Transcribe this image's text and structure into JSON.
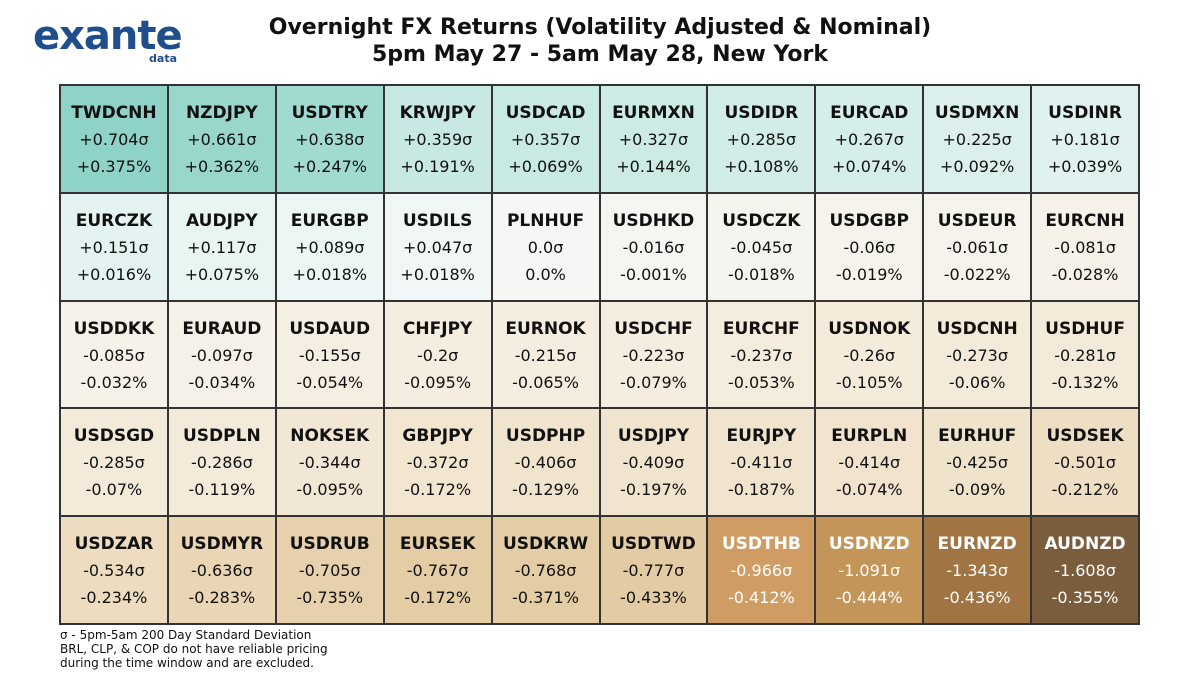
{
  "logo": {
    "word": "exante",
    "sub": "data"
  },
  "title": "Overnight FX Returns (Volatility Adjusted & Nominal)",
  "subtitle": "5pm May 27 - 5am May 28, New York",
  "chart_data": {
    "type": "table",
    "title": "Overnight FX Returns (Volatility Adjusted & Nominal)",
    "subtitle": "5pm May 27 - 5am May 28, New York",
    "columns": [
      "pair",
      "vol_adjusted",
      "nominal"
    ],
    "cells": [
      {
        "pair": "TWDCNH",
        "vol": "+0.704σ",
        "nom": "+0.375%",
        "bg": "#8fd3c8",
        "fg": "#111111"
      },
      {
        "pair": "NZDJPY",
        "vol": "+0.661σ",
        "nom": "+0.362%",
        "bg": "#99d7cc",
        "fg": "#111111"
      },
      {
        "pair": "USDTRY",
        "vol": "+0.638σ",
        "nom": "+0.247%",
        "bg": "#a0dad0",
        "fg": "#111111"
      },
      {
        "pair": "KRWJPY",
        "vol": "+0.359σ",
        "nom": "+0.191%",
        "bg": "#c8e9e3",
        "fg": "#111111"
      },
      {
        "pair": "USDCAD",
        "vol": "+0.357σ",
        "nom": "+0.069%",
        "bg": "#c9e9e3",
        "fg": "#111111"
      },
      {
        "pair": "EURMXN",
        "vol": "+0.327σ",
        "nom": "+0.144%",
        "bg": "#cdebe5",
        "fg": "#111111"
      },
      {
        "pair": "USDIDR",
        "vol": "+0.285σ",
        "nom": "+0.108%",
        "bg": "#d2ede8",
        "fg": "#111111"
      },
      {
        "pair": "EURCAD",
        "vol": "+0.267σ",
        "nom": "+0.074%",
        "bg": "#d5eee9",
        "fg": "#111111"
      },
      {
        "pair": "USDMXN",
        "vol": "+0.225σ",
        "nom": "+0.092%",
        "bg": "#dbf0ec",
        "fg": "#111111"
      },
      {
        "pair": "USDINR",
        "vol": "+0.181σ",
        "nom": "+0.039%",
        "bg": "#e0f2ef",
        "fg": "#111111"
      },
      {
        "pair": "EURCZK",
        "vol": "+0.151σ",
        "nom": "+0.016%",
        "bg": "#e4f3f1",
        "fg": "#111111"
      },
      {
        "pair": "AUDJPY",
        "vol": "+0.117σ",
        "nom": "+0.075%",
        "bg": "#e8f5f3",
        "fg": "#111111"
      },
      {
        "pair": "EURGBP",
        "vol": "+0.089σ",
        "nom": "+0.018%",
        "bg": "#ecf6f5",
        "fg": "#111111"
      },
      {
        "pair": "USDILS",
        "vol": "+0.047σ",
        "nom": "+0.018%",
        "bg": "#f1f7f6",
        "fg": "#111111"
      },
      {
        "pair": "PLNHUF",
        "vol": "0.0σ",
        "nom": "0.0%",
        "bg": "#f6f6f4",
        "fg": "#111111"
      },
      {
        "pair": "USDHKD",
        "vol": "-0.016σ",
        "nom": "-0.001%",
        "bg": "#f6f5f2",
        "fg": "#111111"
      },
      {
        "pair": "USDCZK",
        "vol": "-0.045σ",
        "nom": "-0.018%",
        "bg": "#f6f4ee",
        "fg": "#111111"
      },
      {
        "pair": "USDGBP",
        "vol": "-0.06σ",
        "nom": "-0.019%",
        "bg": "#f6f3ec",
        "fg": "#111111"
      },
      {
        "pair": "USDEUR",
        "vol": "-0.061σ",
        "nom": "-0.022%",
        "bg": "#f6f3ec",
        "fg": "#111111"
      },
      {
        "pair": "EURCNH",
        "vol": "-0.081σ",
        "nom": "-0.028%",
        "bg": "#f6f2ea",
        "fg": "#111111"
      },
      {
        "pair": "USDDKK",
        "vol": "-0.085σ",
        "nom": "-0.032%",
        "bg": "#f6f2ea",
        "fg": "#111111"
      },
      {
        "pair": "EURAUD",
        "vol": "-0.097σ",
        "nom": "-0.034%",
        "bg": "#f6f1e8",
        "fg": "#111111"
      },
      {
        "pair": "USDAUD",
        "vol": "-0.155σ",
        "nom": "-0.054%",
        "bg": "#f5efe3",
        "fg": "#111111"
      },
      {
        "pair": "CHFJPY",
        "vol": "-0.2σ",
        "nom": "-0.095%",
        "bg": "#f5eee0",
        "fg": "#111111"
      },
      {
        "pair": "EURNOK",
        "vol": "-0.215σ",
        "nom": "-0.065%",
        "bg": "#f5ede0",
        "fg": "#111111"
      },
      {
        "pair": "USDCHF",
        "vol": "-0.223σ",
        "nom": "-0.079%",
        "bg": "#f5eddf",
        "fg": "#111111"
      },
      {
        "pair": "EURCHF",
        "vol": "-0.237σ",
        "nom": "-0.053%",
        "bg": "#f4ecdd",
        "fg": "#111111"
      },
      {
        "pair": "USDNOK",
        "vol": "-0.26σ",
        "nom": "-0.105%",
        "bg": "#f4ebdb",
        "fg": "#111111"
      },
      {
        "pair": "USDCNH",
        "vol": "-0.273σ",
        "nom": "-0.06%",
        "bg": "#f4eada",
        "fg": "#111111"
      },
      {
        "pair": "USDHUF",
        "vol": "-0.281σ",
        "nom": "-0.132%",
        "bg": "#f4eada",
        "fg": "#111111"
      },
      {
        "pair": "USDSGD",
        "vol": "-0.285σ",
        "nom": "-0.07%",
        "bg": "#f3eada",
        "fg": "#111111"
      },
      {
        "pair": "USDPLN",
        "vol": "-0.286σ",
        "nom": "-0.119%",
        "bg": "#f3eada",
        "fg": "#111111"
      },
      {
        "pair": "NOKSEK",
        "vol": "-0.344σ",
        "nom": "-0.095%",
        "bg": "#f2e7d4",
        "fg": "#111111"
      },
      {
        "pair": "GBPJPY",
        "vol": "-0.372σ",
        "nom": "-0.172%",
        "bg": "#f2e6d1",
        "fg": "#111111"
      },
      {
        "pair": "USDPHP",
        "vol": "-0.406σ",
        "nom": "-0.129%",
        "bg": "#f1e4ce",
        "fg": "#111111"
      },
      {
        "pair": "USDJPY",
        "vol": "-0.409σ",
        "nom": "-0.197%",
        "bg": "#f1e4ce",
        "fg": "#111111"
      },
      {
        "pair": "EURJPY",
        "vol": "-0.411σ",
        "nom": "-0.187%",
        "bg": "#f1e4ce",
        "fg": "#111111"
      },
      {
        "pair": "EURPLN",
        "vol": "-0.414σ",
        "nom": "-0.074%",
        "bg": "#f1e3cd",
        "fg": "#111111"
      },
      {
        "pair": "EURHUF",
        "vol": "-0.425σ",
        "nom": "-0.09%",
        "bg": "#f0e3cc",
        "fg": "#111111"
      },
      {
        "pair": "USDSEK",
        "vol": "-0.501σ",
        "nom": "-0.212%",
        "bg": "#eedfc4",
        "fg": "#111111"
      },
      {
        "pair": "USDZAR",
        "vol": "-0.534σ",
        "nom": "-0.234%",
        "bg": "#eddcc0",
        "fg": "#111111"
      },
      {
        "pair": "USDMYR",
        "vol": "-0.636σ",
        "nom": "-0.283%",
        "bg": "#ead5b4",
        "fg": "#111111"
      },
      {
        "pair": "USDRUB",
        "vol": "-0.705σ",
        "nom": "-0.735%",
        "bg": "#e7d1ad",
        "fg": "#111111"
      },
      {
        "pair": "EURSEK",
        "vol": "-0.767σ",
        "nom": "-0.172%",
        "bg": "#e4cca5",
        "fg": "#111111"
      },
      {
        "pair": "USDKRW",
        "vol": "-0.768σ",
        "nom": "-0.371%",
        "bg": "#e4cca5",
        "fg": "#111111"
      },
      {
        "pair": "USDTWD",
        "vol": "-0.777σ",
        "nom": "-0.433%",
        "bg": "#e3cba3",
        "fg": "#111111"
      },
      {
        "pair": "USDTHB",
        "vol": "-0.966σ",
        "nom": "-0.412%",
        "bg": "#cf9d64",
        "fg": "#ffffff"
      },
      {
        "pair": "USDNZD",
        "vol": "-1.091σ",
        "nom": "-0.444%",
        "bg": "#c49559",
        "fg": "#ffffff"
      },
      {
        "pair": "EURNZD",
        "vol": "-1.343σ",
        "nom": "-0.436%",
        "bg": "#a07443",
        "fg": "#ffffff"
      },
      {
        "pair": "AUDNZD",
        "vol": "-1.608σ",
        "nom": "-0.355%",
        "bg": "#7a5d3c",
        "fg": "#ffffff"
      }
    ]
  },
  "footnote": {
    "line1": "σ - 5pm-5am 200 Day Standard Deviation",
    "line2": "BRL, CLP, & COP do not have reliable pricing",
    "line3": "during the time window and are excluded."
  }
}
